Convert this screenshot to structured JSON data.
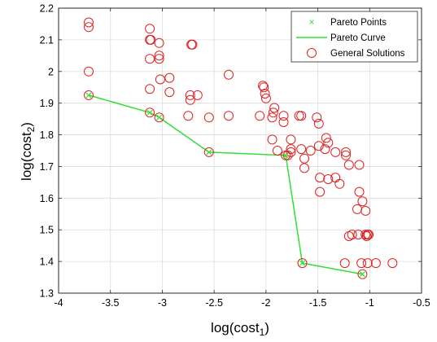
{
  "chart_data": {
    "type": "scatter",
    "xlabel": "log(cost",
    "xlabel_sub": "1",
    "xlabel_close": ")",
    "ylabel": "log(cost",
    "ylabel_sub": "2",
    "ylabel_close": ")",
    "xlim": [
      -4,
      -0.5
    ],
    "ylim": [
      1.3,
      2.2
    ],
    "xticks": [
      -4,
      -3.5,
      -3,
      -2.5,
      -2,
      -1.5,
      -1,
      -0.5
    ],
    "xtick_labels": [
      "-4",
      "-3.5",
      "-3",
      "-2.5",
      "-2",
      "-1.5",
      "-1",
      "-0.5"
    ],
    "yticks": [
      1.3,
      1.4,
      1.5,
      1.6,
      1.7,
      1.8,
      1.9,
      2.0,
      2.1,
      2.2
    ],
    "ytick_labels": [
      "1.3",
      "1.4",
      "1.5",
      "1.6",
      "1.7",
      "1.8",
      "1.9",
      "2",
      "2.1",
      "2.2"
    ],
    "grid": true,
    "legend_position": "top-right",
    "legend": [
      "Pareto Points",
      "Pareto Curve",
      "General Solutions"
    ],
    "colors": {
      "pareto": "#33dd33",
      "general": "#dd2222"
    },
    "series": [
      {
        "name": "General Solutions",
        "marker": "circle",
        "points": [
          [
            -3.71,
            2.155
          ],
          [
            -3.71,
            2.14
          ],
          [
            -3.71,
            2.0
          ],
          [
            -3.71,
            1.925
          ],
          [
            -3.12,
            2.135
          ],
          [
            -3.12,
            2.1
          ],
          [
            -3.11,
            2.1
          ],
          [
            -3.03,
            2.09
          ],
          [
            -3.12,
            2.04
          ],
          [
            -3.03,
            2.05
          ],
          [
            -3.03,
            2.04
          ],
          [
            -2.72,
            2.085
          ],
          [
            -2.71,
            2.085
          ],
          [
            -3.02,
            1.975
          ],
          [
            -2.93,
            1.98
          ],
          [
            -3.12,
            1.945
          ],
          [
            -2.93,
            1.935
          ],
          [
            -2.73,
            1.925
          ],
          [
            -2.73,
            1.91
          ],
          [
            -2.66,
            1.925
          ],
          [
            -2.36,
            1.99
          ],
          [
            -2.75,
            1.86
          ],
          [
            -2.55,
            1.855
          ],
          [
            -2.36,
            1.86
          ],
          [
            -3.12,
            1.87
          ],
          [
            -3.03,
            1.855
          ],
          [
            -2.55,
            1.745
          ],
          [
            -2.03,
            1.955
          ],
          [
            -2.02,
            1.95
          ],
          [
            -2.01,
            1.93
          ],
          [
            -2.0,
            1.915
          ],
          [
            -1.92,
            1.885
          ],
          [
            -1.93,
            1.87
          ],
          [
            -2.06,
            1.86
          ],
          [
            -1.83,
            1.86
          ],
          [
            -1.94,
            1.855
          ],
          [
            -1.83,
            1.84
          ],
          [
            -1.68,
            1.86
          ],
          [
            -1.66,
            1.86
          ],
          [
            -1.51,
            1.855
          ],
          [
            -1.49,
            1.835
          ],
          [
            -1.42,
            1.79
          ],
          [
            -1.4,
            1.775
          ],
          [
            -1.76,
            1.785
          ],
          [
            -1.66,
            1.755
          ],
          [
            -1.76,
            1.755
          ],
          [
            -1.76,
            1.745
          ],
          [
            -1.49,
            1.765
          ],
          [
            -1.43,
            1.755
          ],
          [
            -1.57,
            1.75
          ],
          [
            -1.89,
            1.75
          ],
          [
            -1.79,
            1.735
          ],
          [
            -1.94,
            1.785
          ],
          [
            -1.33,
            1.745
          ],
          [
            -1.23,
            1.745
          ],
          [
            -1.23,
            1.735
          ],
          [
            -1.63,
            1.725
          ],
          [
            -1.2,
            1.705
          ],
          [
            -1.1,
            1.705
          ],
          [
            -1.63,
            1.695
          ],
          [
            -1.48,
            1.665
          ],
          [
            -1.4,
            1.66
          ],
          [
            -1.33,
            1.665
          ],
          [
            -1.29,
            1.645
          ],
          [
            -1.48,
            1.62
          ],
          [
            -1.1,
            1.62
          ],
          [
            -1.07,
            1.59
          ],
          [
            -1.04,
            1.56
          ],
          [
            -1.12,
            1.565
          ],
          [
            -1.11,
            1.485
          ],
          [
            -1.17,
            1.485
          ],
          [
            -1.2,
            1.48
          ],
          [
            -1.04,
            1.485
          ],
          [
            -1.03,
            1.48
          ],
          [
            -1.02,
            1.485
          ],
          [
            -1.01,
            1.485
          ],
          [
            -1.24,
            1.395
          ],
          [
            -1.08,
            1.395
          ],
          [
            -1.02,
            1.395
          ],
          [
            -0.94,
            1.395
          ],
          [
            -0.78,
            1.395
          ],
          [
            -1.65,
            1.395
          ],
          [
            -1.07,
            1.36
          ],
          [
            -1.81,
            1.735
          ]
        ]
      },
      {
        "name": "Pareto Points",
        "marker": "x",
        "points": [
          [
            -3.71,
            1.925
          ],
          [
            -3.12,
            1.87
          ],
          [
            -3.03,
            1.855
          ],
          [
            -2.55,
            1.745
          ],
          [
            -1.81,
            1.735
          ],
          [
            -1.65,
            1.395
          ],
          [
            -1.07,
            1.36
          ]
        ]
      }
    ]
  }
}
